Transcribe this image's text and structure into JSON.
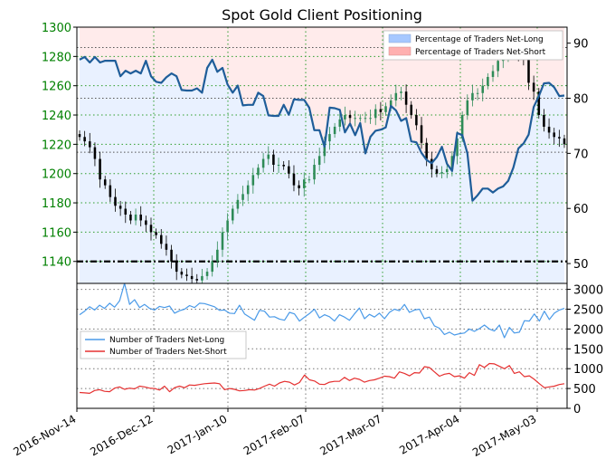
{
  "chart_data": {
    "title": "Spot Gold Client Positioning",
    "x_ticks": [
      "2016-Nov-14",
      "2016-Dec-12",
      "2017-Jan-10",
      "2017-Feb-07",
      "2017-Mar-07",
      "2017-Apr-04",
      "2017-May-03"
    ],
    "top_panel": {
      "type": "candlestick",
      "price_axis": {
        "ticks": [
          1140,
          1160,
          1180,
          1200,
          1220,
          1240,
          1260,
          1280,
          1300
        ],
        "ylim": [
          1125,
          1300
        ],
        "color": "#008000"
      },
      "pct_axis": {
        "ticks": [
          50,
          60,
          70,
          80,
          90
        ],
        "ylim": [
          46.4,
          92.9
        ]
      },
      "price_series": [
        1225,
        1222,
        1218,
        1210,
        1196,
        1192,
        1184,
        1178,
        1176,
        1172,
        1168,
        1172,
        1168,
        1165,
        1160,
        1158,
        1152,
        1148,
        1140,
        1133,
        1131,
        1130,
        1128,
        1127,
        1130,
        1133,
        1140,
        1148,
        1160,
        1168,
        1176,
        1182,
        1186,
        1192,
        1199,
        1204,
        1210,
        1213,
        1206,
        1206,
        1205,
        1200,
        1192,
        1190,
        1196,
        1196,
        1206,
        1212,
        1222,
        1227,
        1232,
        1237,
        1240,
        1238,
        1238,
        1238,
        1238,
        1238,
        1244,
        1242,
        1246,
        1250,
        1255,
        1256,
        1247,
        1240,
        1233,
        1221,
        1210,
        1203,
        1200,
        1201,
        1203,
        1212,
        1224,
        1240,
        1250,
        1255,
        1255,
        1260,
        1266,
        1270,
        1277,
        1282,
        1283,
        1283,
        1280,
        1278,
        1262,
        1256,
        1240,
        1232,
        1228,
        1225,
        1224,
        1220
      ],
      "net_long_pct": [
        87.0,
        87.5,
        86.5,
        87.5,
        86.5,
        86.8,
        86.8,
        86.8,
        84.0,
        85.0,
        84.5,
        85.0,
        84.5,
        86.8,
        84.0,
        83.0,
        82.8,
        83.8,
        84.5,
        84.0,
        81.5,
        81.4,
        81.4,
        81.8,
        81.0,
        85.5,
        87.0,
        84.8,
        85.5,
        82.5,
        81.0,
        82.3,
        78.7,
        78.8,
        78.8,
        81.0,
        80.4,
        76.9,
        76.8,
        76.8,
        78.8,
        77.0,
        79.8,
        79.7,
        79.7,
        78.3,
        74.2,
        74.2,
        71.2,
        78.3,
        78.2,
        77.9,
        73.8,
        75.4,
        73.3,
        75.5,
        70.0,
        73.0,
        74.1,
        74.3,
        74.7,
        78.6,
        77.8,
        75.9,
        76.4,
        72.2,
        72.0,
        70.1,
        68.8,
        68.2,
        69.3,
        71.2,
        68.1,
        66.8,
        73.7,
        73.3,
        70.0,
        61.4,
        62.4,
        63.6,
        63.6,
        62.9,
        63.6,
        64.0,
        65.0,
        67.4,
        70.9,
        71.8,
        73.4,
        78.4,
        80.4,
        82.7,
        82.8,
        82.0,
        80.4,
        80.5
      ],
      "annotation_lines": [
        {
          "value": 1140,
          "axis": "price",
          "color": "#000000",
          "style": "dash-dot"
        },
        {
          "value": 70.2,
          "axis": "pct",
          "color": "#555555",
          "style": "dotted"
        },
        {
          "value": 80.0,
          "axis": "pct",
          "color": "#555555",
          "style": "dotted"
        },
        {
          "value": 89.2,
          "axis": "pct",
          "color": "#555555",
          "style": "dotted"
        }
      ],
      "legend": {
        "position": "top-right",
        "entries": [
          {
            "label": "Percentage of Traders Net-Long",
            "color": "#a6c8ff"
          },
          {
            "label": "Percentage of Traders Net-Short",
            "color": "#ffb0b0"
          }
        ]
      },
      "up_color": "#2e8b57",
      "down_color": "#000000",
      "pct_line_color": "#1f5d99"
    },
    "bottom_panel": {
      "type": "line",
      "y_ticks": [
        0,
        500,
        1000,
        1500,
        2000,
        2500,
        3000
      ],
      "ylim": [
        0,
        3150
      ],
      "legend": {
        "position": "top-left",
        "entries": [
          {
            "label": "Number of Traders Net-Long",
            "color": "#4a9ae8"
          },
          {
            "label": "Number of Traders Net-Short",
            "color": "#e53030"
          }
        ]
      },
      "net_long": [
        2360,
        2450,
        2560,
        2480,
        2600,
        2520,
        2650,
        2550,
        2710,
        3150,
        2620,
        2740,
        2540,
        2620,
        2520,
        2480,
        2570,
        2540,
        2580,
        2400,
        2460,
        2500,
        2590,
        2540,
        2650,
        2640,
        2600,
        2560,
        2470,
        2480,
        2400,
        2390,
        2600,
        2380,
        2300,
        2220,
        2470,
        2450,
        2300,
        2310,
        2250,
        2220,
        2420,
        2380,
        2200,
        2300,
        2390,
        2500,
        2280,
        2360,
        2310,
        2200,
        2360,
        2300,
        2220,
        2380,
        2530,
        2260,
        2370,
        2300,
        2400,
        2260,
        2420,
        2500,
        2460,
        2620,
        2420,
        2480,
        2500,
        2260,
        2300,
        2080,
        2020,
        1860,
        1920,
        1850,
        1880,
        1900,
        2000,
        1940,
        2010,
        2100,
        2000,
        1950,
        2100,
        1780,
        2040,
        1900,
        1920,
        2210,
        2200,
        2380,
        2200,
        2450,
        2240,
        2400,
        2480,
        2520
      ],
      "net_short": [
        400,
        390,
        380,
        450,
        470,
        430,
        420,
        510,
        540,
        480,
        510,
        490,
        560,
        540,
        510,
        500,
        460,
        560,
        420,
        520,
        560,
        520,
        590,
        580,
        600,
        620,
        630,
        640,
        620,
        470,
        500,
        480,
        440,
        450,
        470,
        460,
        500,
        560,
        610,
        560,
        640,
        680,
        660,
        590,
        650,
        840,
        720,
        690,
        610,
        600,
        660,
        680,
        680,
        780,
        700,
        760,
        730,
        660,
        700,
        720,
        760,
        810,
        800,
        760,
        920,
        880,
        820,
        900,
        890,
        1050,
        1030,
        920,
        810,
        860,
        880,
        800,
        820,
        760,
        900,
        830,
        1100,
        1030,
        1130,
        1120,
        1060,
        1000,
        1080,
        880,
        920,
        800,
        820,
        730,
        620,
        520,
        540,
        560,
        600,
        620
      ]
    }
  }
}
